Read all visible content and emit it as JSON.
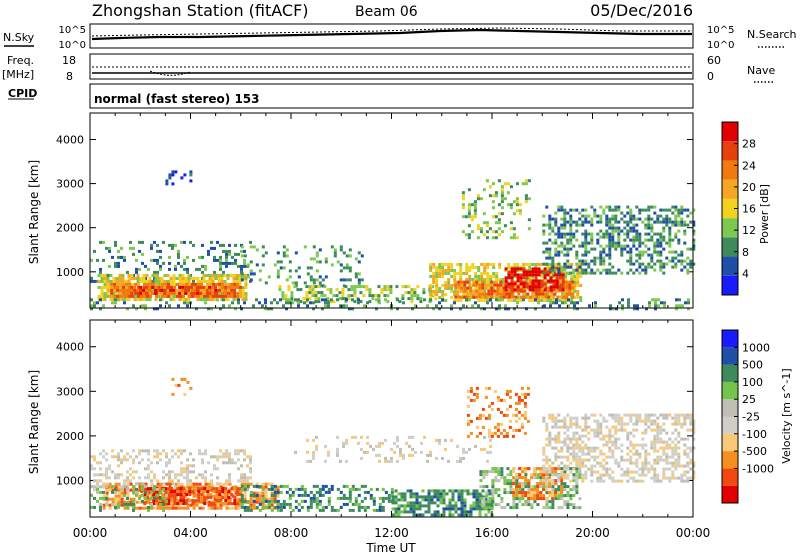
{
  "header": {
    "station": "Zhongshan Station (fitACF)",
    "beam": "Beam 06",
    "date": "05/Dec/2016"
  },
  "top_panels": {
    "nsky_label": "N.Sky",
    "nsearch_label": "N.Search",
    "noise_ticks_left": [
      "10^5",
      "10^0"
    ],
    "noise_ticks_right": [
      "10^5",
      "10^0"
    ],
    "freq_label_1": "Freq.",
    "freq_label_2": "[MHz]",
    "freq_ticks": [
      "18",
      "8"
    ],
    "nave_ticks": [
      "60",
      "0"
    ],
    "nave_label": "Nave",
    "cpid_label": "CPID",
    "cpid_text": "normal (fast stereo) 153"
  },
  "colors": {
    "power": [
      "#1a1aff",
      "#1f4fa8",
      "#3d8a5c",
      "#7ec850",
      "#f2d21e",
      "#f5a623",
      "#f07a10",
      "#e8400c",
      "#e00000"
    ],
    "velocity": [
      "#e00000",
      "#f04a10",
      "#f5901e",
      "#f7c978",
      "#cfcfc8",
      "#bfbfb6",
      "#72c44a",
      "#3d8a5c",
      "#1f4fa8",
      "#1a1aff"
    ]
  },
  "chart_data": [
    {
      "type": "heatmap",
      "name": "power",
      "ylabel": "Slant Range [km]",
      "yticks": [
        "4000",
        "3000",
        "2000",
        "1000"
      ],
      "ylim": [
        180,
        4600
      ],
      "xlim_hours": [
        0,
        24
      ],
      "colorbar_label": "Power [dB]",
      "colorbar_ticks": [
        "28",
        "24",
        "20",
        "16",
        "12",
        "8",
        "4"
      ],
      "colorbar_range": [
        0,
        32
      ],
      "regions": [
        {
          "t": [
            0.0,
            6.4
          ],
          "r": [
            800,
            1700
          ],
          "level": 2,
          "density": 0.25
        },
        {
          "t": [
            0.3,
            6.2
          ],
          "r": [
            380,
            950
          ],
          "level": 4,
          "density": 0.75
        },
        {
          "t": [
            0.8,
            6.0
          ],
          "r": [
            430,
            750
          ],
          "level": 6,
          "density": 0.85
        },
        {
          "t": [
            1.6,
            5.0
          ],
          "r": [
            480,
            680
          ],
          "level": 7,
          "density": 0.7
        },
        {
          "t": [
            6.0,
            10.8
          ],
          "r": [
            700,
            1600
          ],
          "level": 2,
          "density": 0.2
        },
        {
          "t": [
            7.5,
            13.8
          ],
          "r": [
            350,
            700
          ],
          "level": 3,
          "density": 0.45
        },
        {
          "t": [
            13.5,
            19.5
          ],
          "r": [
            380,
            1200
          ],
          "level": 4,
          "density": 0.65
        },
        {
          "t": [
            14.5,
            19.2
          ],
          "r": [
            430,
            800
          ],
          "level": 6,
          "density": 0.8
        },
        {
          "t": [
            16.5,
            18.8
          ],
          "r": [
            600,
            1100
          ],
          "level": 8,
          "density": 0.7
        },
        {
          "t": [
            14.8,
            17.5
          ],
          "r": [
            1800,
            3100
          ],
          "level": 3,
          "density": 0.25
        },
        {
          "t": [
            18.0,
            24.0
          ],
          "r": [
            1000,
            2500
          ],
          "level": 2,
          "density": 0.45
        },
        {
          "t": [
            0.0,
            24.0
          ],
          "r": [
            180,
            400
          ],
          "level": 2,
          "density": 0.25
        },
        {
          "t": [
            3.0,
            4.0
          ],
          "r": [
            2900,
            3300
          ],
          "level": 1,
          "density": 0.2
        }
      ]
    },
    {
      "type": "heatmap",
      "name": "velocity",
      "ylabel": "Slant Range [km]",
      "yticks": [
        "4000",
        "3000",
        "2000",
        "1000"
      ],
      "ylim": [
        180,
        4600
      ],
      "xlim_hours": [
        0,
        24
      ],
      "xticks": [
        "00:00",
        "04:00",
        "08:00",
        "12:00",
        "16:00",
        "20:00",
        "00:00"
      ],
      "xlabel": "Time UT",
      "colorbar_label": "Velocity [m s^-1]",
      "colorbar_ticks": [
        "1000",
        "500",
        "100",
        "25",
        "-25",
        "-100",
        "-500",
        "-1000"
      ],
      "regions": [
        {
          "t": [
            0.0,
            6.4
          ],
          "r": [
            800,
            1700
          ],
          "level": 4,
          "density": 0.35
        },
        {
          "t": [
            0.5,
            7.5
          ],
          "r": [
            380,
            950
          ],
          "level": 2,
          "density": 0.7
        },
        {
          "t": [
            2.0,
            6.0
          ],
          "r": [
            450,
            850
          ],
          "level": 1,
          "density": 0.7
        },
        {
          "t": [
            0.0,
            3.0
          ],
          "r": [
            300,
            900
          ],
          "level": 6,
          "density": 0.3
        },
        {
          "t": [
            6.0,
            12.0
          ],
          "r": [
            300,
            900
          ],
          "level": 7,
          "density": 0.45
        },
        {
          "t": [
            12.0,
            16.0
          ],
          "r": [
            250,
            800
          ],
          "level": 7,
          "density": 0.65
        },
        {
          "t": [
            15.5,
            19.5
          ],
          "r": [
            400,
            1300
          ],
          "level": 6,
          "density": 0.55
        },
        {
          "t": [
            16.8,
            18.8
          ],
          "r": [
            600,
            1300
          ],
          "level": 2,
          "density": 0.55
        },
        {
          "t": [
            15.0,
            17.5
          ],
          "r": [
            2000,
            3100
          ],
          "level": 2,
          "density": 0.25
        },
        {
          "t": [
            18.0,
            24.0
          ],
          "r": [
            1000,
            2500
          ],
          "level": 4,
          "density": 0.5
        },
        {
          "t": [
            8.0,
            16.0
          ],
          "r": [
            1400,
            2000
          ],
          "level": 4,
          "density": 0.15
        },
        {
          "t": [
            3.0,
            4.0
          ],
          "r": [
            2900,
            3300
          ],
          "level": 2,
          "density": 0.2
        }
      ]
    }
  ]
}
